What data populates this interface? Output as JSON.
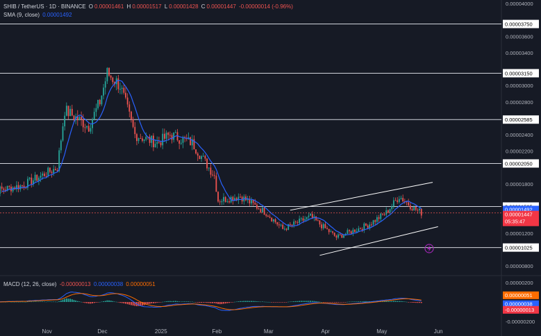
{
  "header": {
    "symbol": "SHIB / TetherUS · 1D · BINANCE",
    "o_label": "O",
    "o_value": "0.00001461",
    "h_label": "H",
    "h_value": "0.00001517",
    "l_label": "L",
    "l_value": "0.00001428",
    "c_label": "C",
    "c_value": "0.00001447",
    "change": "-0.00000014 (-0.96%)"
  },
  "sma_legend": {
    "label": "SMA (9, close)",
    "value": "0.00001492"
  },
  "macd_legend": {
    "label": "MACD (12, 26, close)",
    "v1": "-0.00000013",
    "v2": "0.00000038",
    "v3": "0.00000051"
  },
  "colors": {
    "background": "#161a25",
    "up": "#26a69a",
    "down": "#ef5350",
    "sma": "#2962ff",
    "signal": "#ff6d00",
    "hline": "#d1d4dc",
    "label_bg": "#ffffff",
    "price_tag": "#f23645",
    "sma_tag": "#2962ff",
    "signal_tag": "#ff6d00"
  },
  "chart_data": {
    "type": "candlestick",
    "price_axis": {
      "ticks": [
        "0.00004000",
        "0.00003600",
        "0.00003400",
        "0.00003000",
        "0.00002800",
        "0.00002400",
        "0.00002200",
        "0.00001800",
        "0.00001200",
        "0.00000800"
      ],
      "min": 7e-06,
      "max": 4e-05
    },
    "time_axis": [
      "Nov",
      "Dec",
      "2025",
      "Feb",
      "Mar",
      "Apr",
      "May",
      "Jun"
    ],
    "horizontal_levels": [
      "0.00003750",
      "0.00003150",
      "0.00002585",
      "0.00002050",
      "0.00001525",
      "0.00001025"
    ],
    "current_price": "0.00001447",
    "countdown": "05:35:47",
    "sma_value": "0.00001492",
    "macd_axis": {
      "ticks": [
        "0.00000200",
        "-0.00000200"
      ],
      "tags": [
        "0.00000051",
        "0.00000038",
        "-0.00000013"
      ]
    },
    "key_points": [
      {
        "date": "Oct 1",
        "close": 1.7e-05
      },
      {
        "date": "Oct 20",
        "close": 1.78e-05
      },
      {
        "date": "Nov 8",
        "close": 2e-05
      },
      {
        "date": "Nov 12",
        "close": 2.7e-05
      },
      {
        "date": "Nov 25",
        "close": 2.5e-05
      },
      {
        "date": "Dec 1",
        "close": 2.8e-05
      },
      {
        "date": "Dec 5",
        "close": 3.15e-05
      },
      {
        "date": "Dec 12",
        "close": 3e-05
      },
      {
        "date": "Dec 20",
        "close": 2.4e-05
      },
      {
        "date": "Jan 1",
        "close": 2.3e-05
      },
      {
        "date": "Jan 8",
        "close": 2.4e-05
      },
      {
        "date": "Jan 20",
        "close": 2.3e-05
      },
      {
        "date": "Feb 1",
        "close": 1.9e-05
      },
      {
        "date": "Feb 3",
        "close": 1.6e-05
      },
      {
        "date": "Feb 15",
        "close": 1.65e-05
      },
      {
        "date": "Mar 1",
        "close": 1.45e-05
      },
      {
        "date": "Mar 10",
        "close": 1.25e-05
      },
      {
        "date": "Mar 25",
        "close": 1.4e-05
      },
      {
        "date": "Apr 8",
        "close": 1.15e-05
      },
      {
        "date": "Apr 25",
        "close": 1.3e-05
      },
      {
        "date": "May 5",
        "close": 1.45e-05
      },
      {
        "date": "May 12",
        "close": 1.65e-05
      },
      {
        "date": "May 20",
        "close": 1.5e-05
      },
      {
        "date": "May 24",
        "close": 1.45e-05
      }
    ]
  }
}
